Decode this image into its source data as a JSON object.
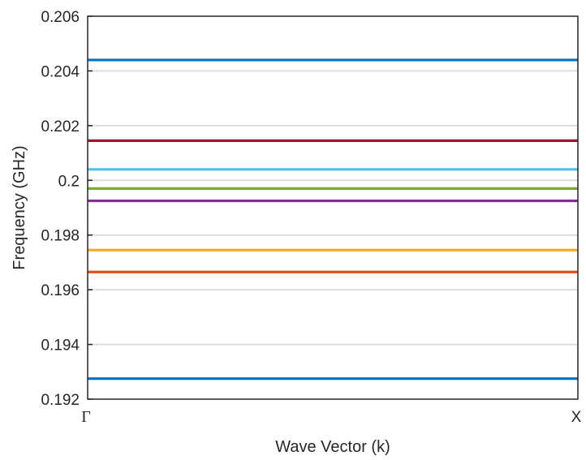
{
  "chart_data": {
    "type": "line",
    "xlabel": "Wave Vector (k)",
    "ylabel": "Frequency (GHz)",
    "x_tick_labels": [
      "Γ",
      "X"
    ],
    "y_tick_labels": [
      "0.192",
      "0.194",
      "0.196",
      "0.198",
      "0.2",
      "0.202",
      "0.204",
      "0.206"
    ],
    "y_ticks": [
      0.192,
      0.194,
      0.196,
      0.198,
      0.2,
      0.202,
      0.204,
      0.206
    ],
    "ylim": [
      0.192,
      0.206
    ],
    "x": [
      0,
      1
    ],
    "grid": "horizontal",
    "series": [
      {
        "values": [
          0.2044,
          0.2044
        ],
        "color": "#0072BD"
      },
      {
        "values": [
          0.20145,
          0.20145
        ],
        "color": "#A2142F"
      },
      {
        "values": [
          0.2004,
          0.2004
        ],
        "color": "#4DBEEE"
      },
      {
        "values": [
          0.1997,
          0.1997
        ],
        "color": "#77AC30"
      },
      {
        "values": [
          0.19925,
          0.19925
        ],
        "color": "#7E2F8E"
      },
      {
        "values": [
          0.19745,
          0.19745
        ],
        "color": "#EDB120"
      },
      {
        "values": [
          0.19665,
          0.19665
        ],
        "color": "#D95319"
      },
      {
        "values": [
          0.19275,
          0.19275
        ],
        "color": "#0072BD"
      }
    ]
  }
}
